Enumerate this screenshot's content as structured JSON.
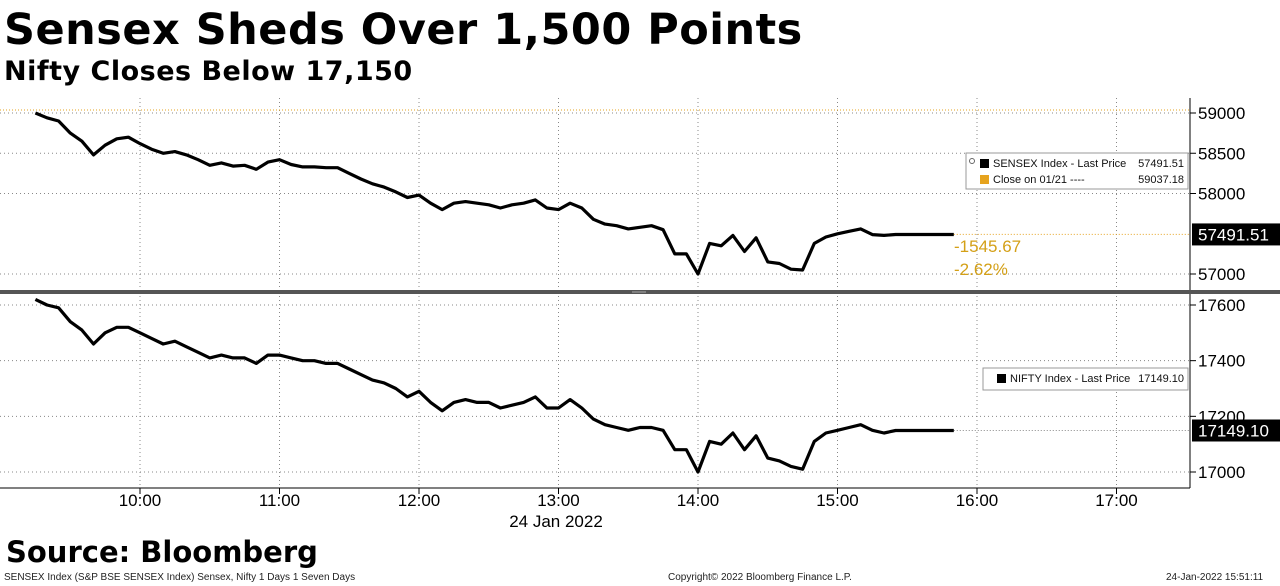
{
  "header": {
    "title": "Sensex Sheds Over 1,500 Points",
    "subtitle": "Nifty Closes Below 17,150"
  },
  "source": "Source: Bloomberg",
  "footer": {
    "left": "SENSEX Index (S&P BSE SENSEX Index) Sensex, Nifty 1 Days 1 Seven Days",
    "center": "Copyright© 2022 Bloomberg Finance L.P.",
    "right": "24-Jan-2022 15:51:11"
  },
  "colors": {
    "line": "#000000",
    "close_line": "#e6a31e",
    "change_text": "#d4a017",
    "grid": "#888888",
    "divider": "#555555"
  },
  "chart_data": [
    {
      "type": "line",
      "panel": "top",
      "series": [
        {
          "name": "SENSEX Index - Last Price",
          "x": [
            "09:15",
            "09:20",
            "09:25",
            "09:30",
            "09:35",
            "09:40",
            "09:45",
            "09:50",
            "09:55",
            "10:00",
            "10:05",
            "10:10",
            "10:15",
            "10:20",
            "10:25",
            "10:30",
            "10:35",
            "10:40",
            "10:45",
            "10:50",
            "10:55",
            "11:00",
            "11:05",
            "11:10",
            "11:15",
            "11:20",
            "11:25",
            "11:30",
            "11:35",
            "11:40",
            "11:45",
            "11:50",
            "11:55",
            "12:00",
            "12:05",
            "12:10",
            "12:15",
            "12:20",
            "12:25",
            "12:30",
            "12:35",
            "12:40",
            "12:45",
            "12:50",
            "12:55",
            "13:00",
            "13:05",
            "13:10",
            "13:15",
            "13:20",
            "13:25",
            "13:30",
            "13:35",
            "13:40",
            "13:45",
            "13:50",
            "13:55",
            "14:00",
            "14:05",
            "14:10",
            "14:15",
            "14:20",
            "14:25",
            "14:30",
            "14:35",
            "14:40",
            "14:45",
            "14:50",
            "14:55",
            "15:00",
            "15:05",
            "15:10",
            "15:15",
            "15:20",
            "15:25",
            "15:30",
            "15:35",
            "15:40",
            "15:45",
            "15:50"
          ],
          "values": [
            59000,
            58940,
            58900,
            58750,
            58650,
            58480,
            58600,
            58680,
            58700,
            58620,
            58550,
            58500,
            58520,
            58480,
            58420,
            58350,
            58380,
            58340,
            58350,
            58300,
            58390,
            58420,
            58360,
            58330,
            58330,
            58320,
            58320,
            58250,
            58180,
            58120,
            58080,
            58020,
            57950,
            57980,
            57880,
            57800,
            57880,
            57900,
            57880,
            57860,
            57820,
            57860,
            57880,
            57920,
            57820,
            57800,
            57880,
            57820,
            57680,
            57620,
            57600,
            57560,
            57580,
            57600,
            57550,
            57250,
            57250,
            57000,
            57380,
            57350,
            57480,
            57280,
            57450,
            57150,
            57130,
            57060,
            57050,
            57380,
            57460,
            57500,
            57530,
            57560,
            57490,
            57480,
            57491,
            57491,
            57491,
            57491,
            57491,
            57491
          ],
          "last_price": 57491.51
        },
        {
          "name": "Close on 01/21",
          "last_price": 59037.18
        }
      ],
      "legend": [
        {
          "label": "SENSEX Index - Last Price",
          "value": "57491.51"
        },
        {
          "label": "Close on 01/21   ----",
          "value": "59037.18"
        }
      ],
      "last_label": "57491.51",
      "change": "-1545.67",
      "change_pct": "-2.62%",
      "yticks": [
        59000,
        58500,
        58000,
        57000
      ],
      "ylim": [
        56700,
        59200
      ],
      "grid": true,
      "legend_position": "top-right"
    },
    {
      "type": "line",
      "panel": "bottom",
      "series": [
        {
          "name": "NIFTY Index - Last Price",
          "x": [
            "09:15",
            "09:20",
            "09:25",
            "09:30",
            "09:35",
            "09:40",
            "09:45",
            "09:50",
            "09:55",
            "10:00",
            "10:05",
            "10:10",
            "10:15",
            "10:20",
            "10:25",
            "10:30",
            "10:35",
            "10:40",
            "10:45",
            "10:50",
            "10:55",
            "11:00",
            "11:05",
            "11:10",
            "11:15",
            "11:20",
            "11:25",
            "11:30",
            "11:35",
            "11:40",
            "11:45",
            "11:50",
            "11:55",
            "12:00",
            "12:05",
            "12:10",
            "12:15",
            "12:20",
            "12:25",
            "12:30",
            "12:35",
            "12:40",
            "12:45",
            "12:50",
            "12:55",
            "13:00",
            "13:05",
            "13:10",
            "13:15",
            "13:20",
            "13:25",
            "13:30",
            "13:35",
            "13:40",
            "13:45",
            "13:50",
            "13:55",
            "14:00",
            "14:05",
            "14:10",
            "14:15",
            "14:20",
            "14:25",
            "14:30",
            "14:35",
            "14:40",
            "14:45",
            "14:50",
            "14:55",
            "15:00",
            "15:05",
            "15:10",
            "15:15",
            "15:20",
            "15:25",
            "15:30",
            "15:35",
            "15:40",
            "15:45",
            "15:50"
          ],
          "values": [
            17620,
            17600,
            17590,
            17540,
            17510,
            17460,
            17500,
            17520,
            17520,
            17500,
            17480,
            17460,
            17470,
            17450,
            17430,
            17410,
            17420,
            17410,
            17410,
            17390,
            17420,
            17420,
            17410,
            17400,
            17400,
            17390,
            17390,
            17370,
            17350,
            17330,
            17320,
            17300,
            17270,
            17290,
            17250,
            17220,
            17250,
            17260,
            17250,
            17250,
            17230,
            17240,
            17250,
            17270,
            17230,
            17230,
            17260,
            17230,
            17190,
            17170,
            17160,
            17150,
            17160,
            17160,
            17150,
            17080,
            17080,
            17000,
            17110,
            17100,
            17140,
            17080,
            17130,
            17050,
            17040,
            17020,
            17010,
            17110,
            17140,
            17150,
            17160,
            17170,
            17150,
            17140,
            17149,
            17149,
            17149,
            17149,
            17149,
            17149
          ],
          "last_price": 17149.1
        }
      ],
      "legend": [
        {
          "label": "NIFTY Index - Last Price",
          "value": "17149.10"
        }
      ],
      "last_label": "17149.10",
      "yticks": [
        17600,
        17400,
        17200,
        17000
      ],
      "ylim": [
        16940,
        17640
      ],
      "grid": true,
      "legend_position": "top-right"
    }
  ],
  "xaxis": {
    "ticks": [
      "10:00",
      "11:00",
      "12:00",
      "13:00",
      "14:00",
      "15:00",
      "16:00",
      "17:00"
    ],
    "date_label": "24 Jan 2022"
  }
}
